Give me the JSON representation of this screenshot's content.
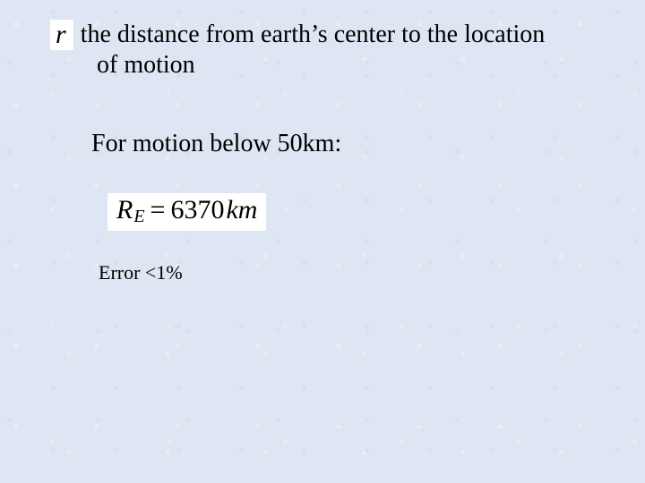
{
  "colors": {
    "background": "#dde6f2",
    "text": "#000000",
    "equation_bg": "#ffffff"
  },
  "typography": {
    "body_family": "Times New Roman",
    "body_size_pt": 21,
    "equation_size_pt": 22,
    "error_size_pt": 16
  },
  "symbol": {
    "r": "r"
  },
  "definition": {
    "line1_after_r": "the distance from earth’s center to the location",
    "line2": "of motion"
  },
  "motion_line": "For motion below 50km:",
  "equation": {
    "lhs_sym": "R",
    "lhs_sub": "E",
    "eq": "=",
    "value": "6370",
    "unit": "km"
  },
  "error_line": "Error <1%"
}
